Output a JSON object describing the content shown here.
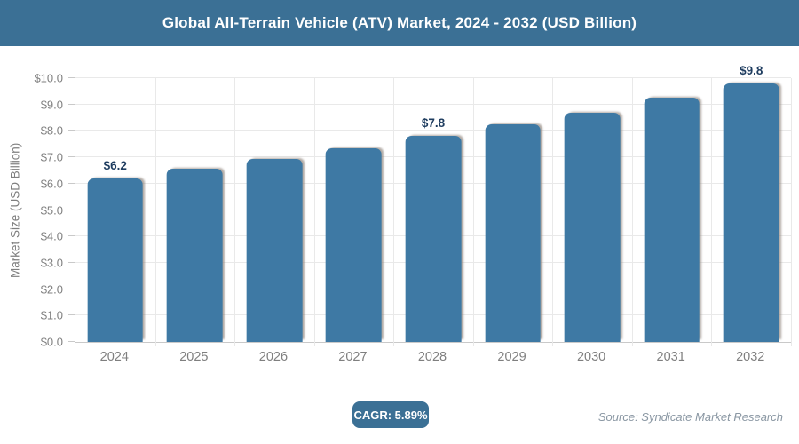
{
  "header": {
    "title": "Global All-Terrain Vehicle (ATV) Market, 2024 - 2032 (USD Billion)"
  },
  "chart_data": {
    "type": "bar",
    "title": "Global All-Terrain Vehicle (ATV) Market, 2024 - 2032 (USD Billion)",
    "categories": [
      "2024",
      "2025",
      "2026",
      "2027",
      "2028",
      "2029",
      "2030",
      "2031",
      "2032"
    ],
    "values": [
      6.2,
      6.55,
      6.95,
      7.35,
      7.8,
      8.25,
      8.7,
      9.25,
      9.8
    ],
    "value_labels": [
      "$6.2",
      "",
      "",
      "",
      "$7.8",
      "",
      "",
      "",
      "$9.8"
    ],
    "xlabel": "",
    "ylabel": "Market Size (USD Billion)",
    "ylim": [
      0,
      10
    ],
    "ytick_step": 1,
    "yticks": [
      "$0.0",
      "$1.0",
      "$2.0",
      "$3.0",
      "$4.0",
      "$5.0",
      "$6.0",
      "$7.0",
      "$8.0",
      "$9.0",
      "$10.0"
    ],
    "grid": true,
    "legend": "none"
  },
  "footer": {
    "cagr_badge": "CAGR: 5.89%",
    "source": "Source: Syndicate Market Research"
  },
  "colors": {
    "header_bg": "#3b7095",
    "badge_bg": "#3b7095",
    "bar": "#3e79a4",
    "bar_label": "#1e3c5f",
    "axis_text": "#7f7f7f",
    "gridline": "#e9e9e9",
    "source_text": "#8a97a3"
  }
}
